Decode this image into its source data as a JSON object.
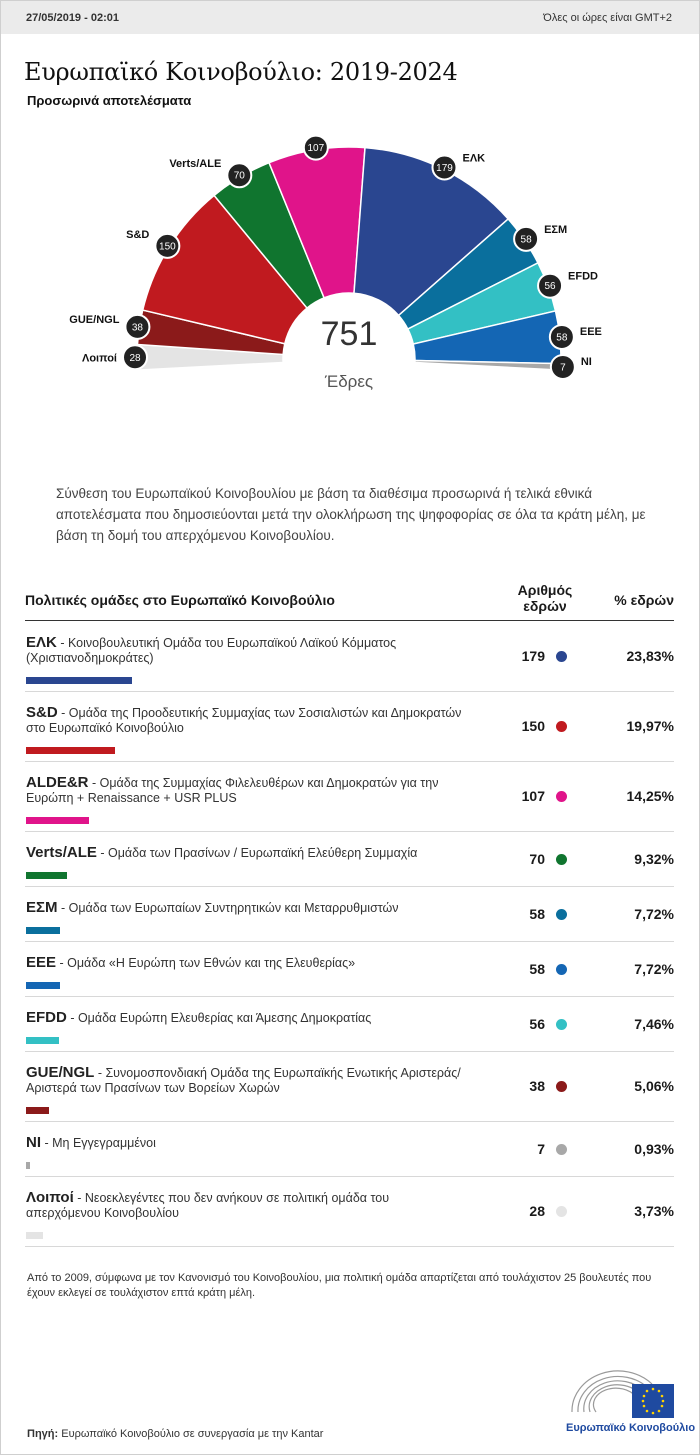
{
  "header": {
    "date": "27/05/2019 - 02:01",
    "timezone": "Όλες οι ώρες είναι GMT+2"
  },
  "title": "Ευρωπαϊκό Κοινοβούλιο: 2019-2024",
  "subtitle": "Προσωρινά αποτελέσματα",
  "total_seats": "751",
  "total_label": "Έδρες",
  "description": "Σύνθεση του Ευρωπαϊκού Κοινοβουλίου με βάση τα διαθέσιμα προσωρινά ή τελικά εθνικά αποτελέσματα που δημοσιεύονται μετά την ολοκλήρωση της ψηφοφορίας σε όλα τα κράτη μέλη, με βάση τη δομή του απερχόμενου Κοινοβουλίου.",
  "table": {
    "col_group": "Πολιτικές ομάδες στο Ευρωπαϊκό Κοινοβούλιο",
    "col_seats": "Αριθμός εδρών",
    "col_pct": "% εδρών"
  },
  "chart_data": {
    "type": "bar",
    "subtype": "parliament-hemicycle",
    "title": "Ευρωπαϊκό Κοινοβούλιο: 2019-2024",
    "total": 751,
    "groups": [
      {
        "abbr": "GUE/NGL",
        "seats": 38,
        "pct": "5,06%",
        "color": "#8b1a1a",
        "description": "Συνομοσπονδιακή Ομάδα της Ευρωπαϊκής Ενωτικής Αριστεράς/Αριστερά των Πρασίνων των Βορείων Χωρών"
      },
      {
        "abbr": "S&D",
        "seats": 150,
        "pct": "19,97%",
        "color": "#c01a1f",
        "description": "Ομάδα της Προοδευτικής Συμμαχίας των Σοσιαλιστών και Δημοκρατών στο Ευρωπαϊκό Κοινοβούλιο"
      },
      {
        "abbr": "Verts/ALE",
        "seats": 70,
        "pct": "9,32%",
        "color": "#10752f",
        "description": "Ομάδα των Πρασίνων / Ευρωπαϊκή Ελεύθερη Συμμαχία"
      },
      {
        "abbr": "ALDE&R",
        "seats": 107,
        "pct": "14,25%",
        "color": "#e0148a",
        "description": "Ομάδα της Συμμαχίας Φιλελευθέρων και Δημοκρατών για την Ευρώπη + Renaissance + USR PLUS"
      },
      {
        "abbr": "ΕΛΚ",
        "seats": 179,
        "pct": "23,83%",
        "color": "#2a4690",
        "description": "Κοινοβουλευτική Ομάδα του Ευρωπαϊκού Λαϊκού Κόμματος (Χριστιανοδημοκράτες)"
      },
      {
        "abbr": "ΕΣΜ",
        "seats": 58,
        "pct": "7,72%",
        "color": "#0a6f9d",
        "description": "Ομάδα των Ευρωπαίων Συντηρητικών και Μεταρρυθμιστών"
      },
      {
        "abbr": "EFDD",
        "seats": 56,
        "pct": "7,46%",
        "color": "#33c0c4",
        "description": "Ομάδα Ευρώπη Ελευθερίας και Άμεσης Δημοκρατίας"
      },
      {
        "abbr": "ΕΕΕ",
        "seats": 58,
        "pct": "7,72%",
        "color": "#1466b4",
        "description": "Ομάδα «Η Ευρώπη των Εθνών και της Ελευθερίας»"
      },
      {
        "abbr": "NI",
        "seats": 7,
        "pct": "0,93%",
        "color": "#a8a8a8",
        "description": "Μη Εγγεγραμμένοι"
      },
      {
        "abbr": "Λοιποί",
        "seats": 28,
        "pct": "3,73%",
        "color": "#e4e4e4",
        "description": "Νεοεκλεγέντες που δεν ανήκουν σε πολιτική ομάδα του απερχόμενου Κοινοβουλίου"
      }
    ],
    "hemicycle_order": [
      "Λοιποί",
      "GUE/NGL",
      "S&D",
      "Verts/ALE",
      "ALDE&R",
      "ΕΛΚ",
      "ΕΣΜ",
      "EFDD",
      "ΕΕΕ",
      "NI"
    ],
    "table_order": [
      "ΕΛΚ",
      "S&D",
      "ALDE&R",
      "Verts/ALE",
      "ΕΣΜ",
      "ΕΕΕ",
      "EFDD",
      "GUE/NGL",
      "NI",
      "Λοιποί"
    ],
    "bar_max_seats": 179
  },
  "footnote": "Από το 2009, σύμφωνα με τον Κανονισμό του Κοινοβουλίου, μια πολιτική ομάδα απαρτίζεται από τουλάχιστον 25 βουλευτές που έχουν εκλεγεί σε τουλάχιστον επτά κράτη μέλη.",
  "source": {
    "label": "Πηγή:",
    "text": " Ευρωπαϊκό Κοινοβούλιο σε συνεργασία με την Kantar"
  },
  "logo_text": "Ευρωπαϊκό Κοινοβούλιο"
}
